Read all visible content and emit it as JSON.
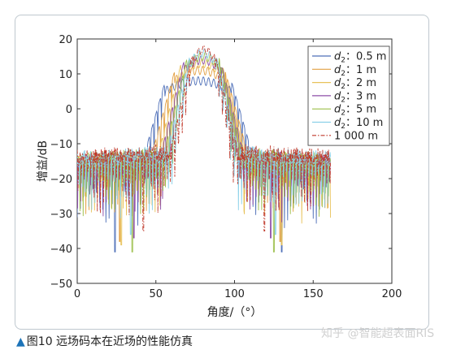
{
  "chart_data": {
    "type": "line",
    "xlabel": "角度/（°）",
    "ylabel": "增益/dB",
    "xlim": [
      0,
      200
    ],
    "ylim": [
      -50,
      20
    ],
    "xticks": [
      0,
      50,
      100,
      150,
      200
    ],
    "yticks": [
      20,
      10,
      0,
      -10,
      -20,
      -30,
      -40,
      -50
    ],
    "grid": false,
    "legend_position": "top-right",
    "series": [
      {
        "name": "d2：0.5 m",
        "label_var": "d",
        "label_sub": "2",
        "label_rest": "：0.5 m",
        "color": "#4e6fb8",
        "dash": "solid",
        "main_lobe": [
          56,
          98
        ],
        "peak": 8,
        "floor": -14,
        "deepest_null": -41
      },
      {
        "name": "d2：1 m",
        "label_var": "d",
        "label_sub": "2",
        "label_rest": "：1 m",
        "color": "#e3a043",
        "dash": "solid",
        "main_lobe": [
          62,
          94
        ],
        "peak": 11,
        "floor": -12,
        "deepest_null": -38
      },
      {
        "name": "d2：2 m",
        "label_var": "d",
        "label_sub": "2",
        "label_rest": "：2 m",
        "color": "#e8c25a",
        "dash": "solid",
        "main_lobe": [
          66,
          92
        ],
        "peak": 13,
        "floor": -12,
        "deepest_null": -39
      },
      {
        "name": "d2：3 m",
        "label_var": "d",
        "label_sub": "2",
        "label_rest": "：3 m",
        "color": "#8e4fa8",
        "dash": "solid",
        "main_lobe": [
          68,
          91
        ],
        "peak": 14,
        "floor": -11.5,
        "deepest_null": -37
      },
      {
        "name": "d2：5 m",
        "label_var": "d",
        "label_sub": "2",
        "label_rest": "：5 m",
        "color": "#9cbf4a",
        "dash": "solid",
        "main_lobe": [
          70,
          90
        ],
        "peak": 15,
        "floor": -11,
        "deepest_null": -41
      },
      {
        "name": "d2：10 m",
        "label_var": "d",
        "label_sub": "2",
        "label_rest": "：10 m",
        "color": "#8ad0e8",
        "dash": "solid",
        "main_lobe": [
          72,
          88
        ],
        "peak": 16,
        "floor": -10.5,
        "deepest_null": -36
      },
      {
        "name": "1 000 m",
        "label_var": "",
        "label_sub": "",
        "label_rest": "1 000 m",
        "color": "#c0392b",
        "dash": "dashdot",
        "main_lobe": [
          74,
          87
        ],
        "peak": 17,
        "floor": -10,
        "deepest_null": -35
      }
    ],
    "x_range_of_data": [
      0,
      161
    ]
  },
  "caption": {
    "marker": "▲",
    "text": "图10  远场码本在近场的性能仿真"
  },
  "watermark": "知乎 @智能超表面RIS"
}
